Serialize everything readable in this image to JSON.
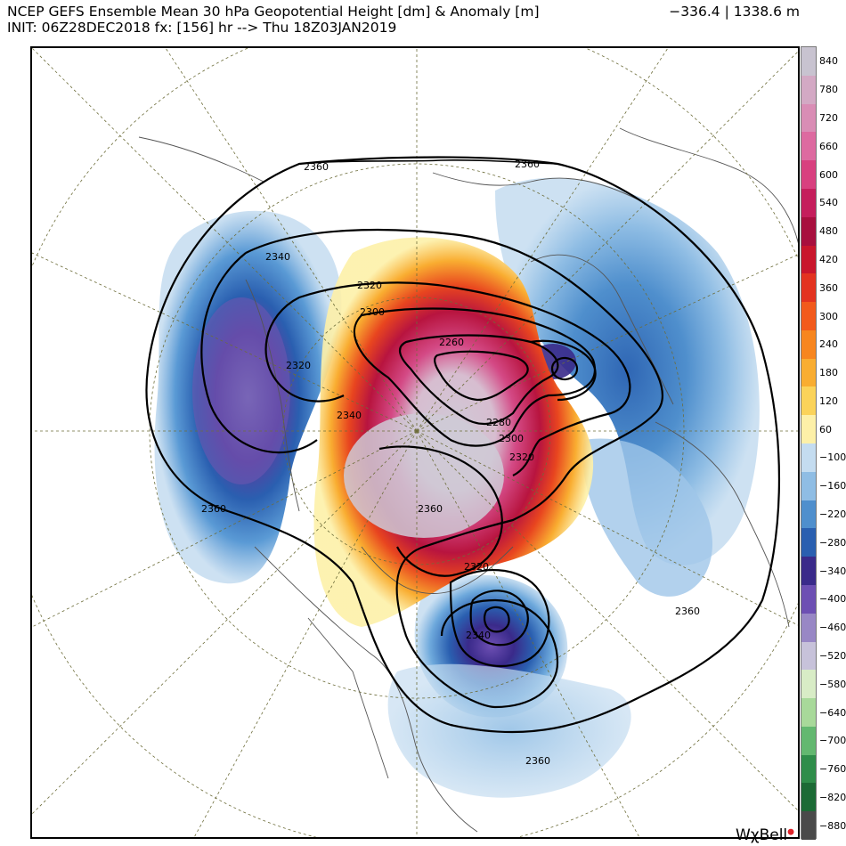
{
  "header": {
    "title_line1": "NCEP GEFS Ensemble Mean 30 hPa Geopotential Height [dm] & Anomaly [m]",
    "title_line2": "INIT: 06Z28DEC2018 fx: [156] hr --> Thu 18Z03JAN2019",
    "range": "−336.4 | 1338.6 m"
  },
  "contour_labels": [
    {
      "id": "c2360-nw",
      "text": "2360"
    },
    {
      "id": "c2360-n",
      "text": "2360"
    },
    {
      "id": "c2340-nw",
      "text": "2340"
    },
    {
      "id": "c2320-n",
      "text": "2320"
    },
    {
      "id": "c2300-n",
      "text": "2300"
    },
    {
      "id": "c2260",
      "text": "2260"
    },
    {
      "id": "c2320-w",
      "text": "2320"
    },
    {
      "id": "c2340-c",
      "text": "2340"
    },
    {
      "id": "c2280",
      "text": "2280"
    },
    {
      "id": "c2300-s",
      "text": "2300"
    },
    {
      "id": "c2320-s",
      "text": "2320"
    },
    {
      "id": "c2360-w",
      "text": "2360"
    },
    {
      "id": "c2360-c",
      "text": "2360"
    },
    {
      "id": "c2320-na",
      "text": "2320"
    },
    {
      "id": "c2340-na",
      "text": "2340"
    },
    {
      "id": "c2360-e",
      "text": "2360"
    },
    {
      "id": "c2360-se",
      "text": "2360"
    }
  ],
  "colorbar": {
    "labels": [
      "840",
      "780",
      "720",
      "660",
      "600",
      "540",
      "480",
      "420",
      "360",
      "300",
      "240",
      "180",
      "120",
      "60",
      "−100",
      "−160",
      "−220",
      "−280",
      "−340",
      "−400",
      "−460",
      "−520",
      "−580",
      "−640",
      "−700",
      "−760",
      "−820",
      "−880"
    ],
    "colors": [
      "#c8c3d0",
      "#d3a9c4",
      "#d98db5",
      "#dd6aa0",
      "#d8407f",
      "#c51e5c",
      "#a80f3e",
      "#c9162c",
      "#e33320",
      "#f25a1c",
      "#f7861f",
      "#f9ad31",
      "#fbd35a",
      "#fdf0a8",
      "#c4dcf0",
      "#8fbde4",
      "#4f8fcd",
      "#2a5fb0",
      "#3a2a8a",
      "#6d4fb3",
      "#9887c5",
      "#c7c2da",
      "#d8ecc6",
      "#a8d99a",
      "#63b870",
      "#2f8d4a",
      "#1c6a35",
      "#4a4a4a"
    ],
    "unit_note": ""
  },
  "brand": {
    "name": "WχBell"
  }
}
